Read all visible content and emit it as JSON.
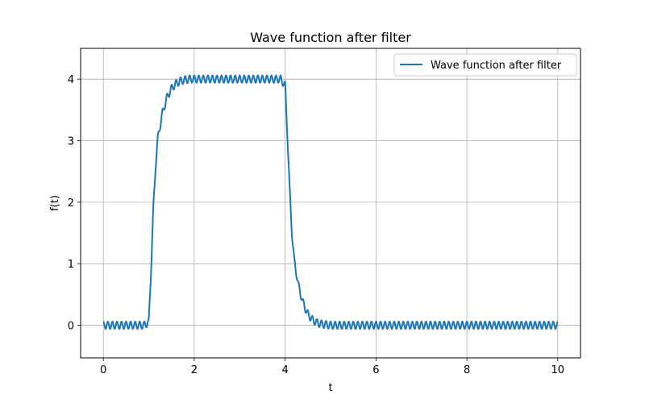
{
  "chart_data": {
    "type": "line",
    "title": "Wave function after filter",
    "xlabel": "t",
    "ylabel": "f(t)",
    "xlim": [
      -0.5,
      10.5
    ],
    "ylim": [
      -0.53,
      4.5
    ],
    "xticks": [
      0,
      2,
      4,
      6,
      8,
      10
    ],
    "yticks": [
      0,
      1,
      2,
      3,
      4
    ],
    "grid": true,
    "legend_position": "top-right",
    "series": [
      {
        "name": "Wave function after filter",
        "color": "#1f77b4",
        "base_curve": {
          "x": [
            0,
            0.9,
            1.0,
            1.05,
            1.1,
            1.15,
            1.2,
            1.3,
            1.4,
            1.5,
            1.6,
            1.7,
            1.8,
            1.9,
            2.0,
            3.9,
            4.0,
            4.05,
            4.1,
            4.15,
            4.2,
            4.3,
            4.4,
            4.5,
            4.6,
            4.7,
            4.8,
            5.0,
            10.0
          ],
          "y": [
            0,
            0,
            0.05,
            0.9,
            1.9,
            2.6,
            3.05,
            3.45,
            3.7,
            3.85,
            3.93,
            3.97,
            3.99,
            4.0,
            4.0,
            4.0,
            3.9,
            3.1,
            2.2,
            1.5,
            1.05,
            0.62,
            0.35,
            0.18,
            0.09,
            0.04,
            0.02,
            0.0,
            0.0
          ]
        },
        "ripple_amplitude": 0.06,
        "ripple_period": 0.1
      }
    ]
  }
}
